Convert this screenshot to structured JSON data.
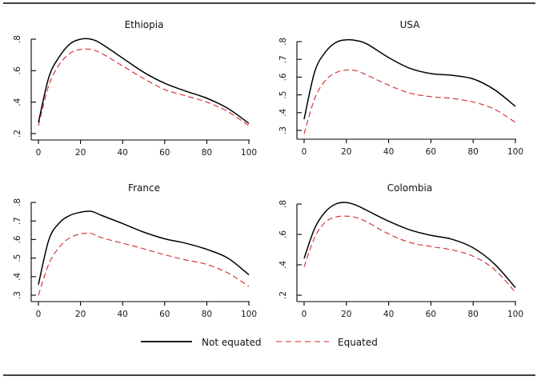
{
  "chart_data": [
    {
      "type": "line",
      "title": "Ethiopia",
      "xlabel": "",
      "ylabel": "",
      "xlim": [
        0,
        100
      ],
      "ylim": [
        0.2,
        0.8
      ],
      "xticks": [
        0,
        20,
        40,
        60,
        80,
        100
      ],
      "xtick_labels": [
        "0",
        "20",
        "40",
        "60",
        "80",
        "100"
      ],
      "yticks": [
        0.2,
        0.4,
        0.6,
        0.8
      ],
      "ytick_labels": [
        ".2",
        ".4",
        ".6",
        ".8"
      ],
      "x": [
        0,
        5,
        10,
        15,
        20,
        25,
        30,
        40,
        50,
        60,
        70,
        80,
        90,
        100
      ],
      "series": [
        {
          "name": "Not equated",
          "style": "solid",
          "color": "#000000",
          "values": [
            0.27,
            0.56,
            0.69,
            0.77,
            0.8,
            0.8,
            0.77,
            0.68,
            0.59,
            0.52,
            0.47,
            0.425,
            0.36,
            0.265
          ]
        },
        {
          "name": "Equated",
          "style": "dashed",
          "color": "#d62728",
          "values": [
            0.25,
            0.51,
            0.64,
            0.71,
            0.735,
            0.735,
            0.71,
            0.63,
            0.55,
            0.48,
            0.44,
            0.4,
            0.34,
            0.25
          ]
        }
      ],
      "grid": false
    },
    {
      "type": "line",
      "title": "USA",
      "xlabel": "",
      "ylabel": "",
      "xlim": [
        0,
        100
      ],
      "ylim": [
        0.3,
        0.8
      ],
      "xticks": [
        0,
        20,
        40,
        60,
        80,
        100
      ],
      "xtick_labels": [
        "0",
        "20",
        "40",
        "60",
        "80",
        "100"
      ],
      "yticks": [
        0.3,
        0.4,
        0.5,
        0.6,
        0.7,
        0.8
      ],
      "ytick_labels": [
        ".3",
        ".4",
        ".5",
        ".6",
        ".7",
        ".8"
      ],
      "x": [
        0,
        5,
        10,
        15,
        20,
        25,
        30,
        40,
        50,
        60,
        70,
        80,
        90,
        100
      ],
      "series": [
        {
          "name": "Not equated",
          "style": "solid",
          "color": "#000000",
          "values": [
            0.363,
            0.63,
            0.74,
            0.795,
            0.81,
            0.805,
            0.785,
            0.71,
            0.65,
            0.62,
            0.61,
            0.59,
            0.53,
            0.435
          ]
        },
        {
          "name": "Equated",
          "style": "dashed",
          "color": "#d62728",
          "values": [
            0.28,
            0.48,
            0.58,
            0.625,
            0.64,
            0.635,
            0.61,
            0.555,
            0.51,
            0.49,
            0.48,
            0.46,
            0.42,
            0.345
          ]
        }
      ],
      "grid": false
    },
    {
      "type": "line",
      "title": "France",
      "xlabel": "",
      "ylabel": "",
      "xlim": [
        0,
        100
      ],
      "ylim": [
        0.3,
        0.8
      ],
      "xticks": [
        0,
        20,
        40,
        60,
        80,
        100
      ],
      "xtick_labels": [
        "0",
        "20",
        "40",
        "60",
        "80",
        "100"
      ],
      "yticks": [
        0.3,
        0.4,
        0.5,
        0.6,
        0.7,
        0.8
      ],
      "ytick_labels": [
        ".3",
        ".4",
        ".5",
        ".6",
        ".7",
        ".8"
      ],
      "x": [
        0,
        5,
        10,
        15,
        20,
        25,
        30,
        40,
        50,
        60,
        70,
        80,
        90,
        100
      ],
      "series": [
        {
          "name": "Not equated",
          "style": "solid",
          "color": "#000000",
          "values": [
            0.357,
            0.6,
            0.69,
            0.73,
            0.747,
            0.752,
            0.73,
            0.686,
            0.64,
            0.604,
            0.58,
            0.547,
            0.5,
            0.41
          ]
        },
        {
          "name": "Equated",
          "style": "dashed",
          "color": "#d62728",
          "values": [
            0.3,
            0.47,
            0.56,
            0.61,
            0.63,
            0.633,
            0.61,
            0.58,
            0.55,
            0.518,
            0.49,
            0.466,
            0.42,
            0.347
          ]
        }
      ],
      "grid": false
    },
    {
      "type": "line",
      "title": "Colombia",
      "xlabel": "",
      "ylabel": "",
      "xlim": [
        0,
        100
      ],
      "ylim": [
        0.2,
        0.8
      ],
      "xticks": [
        0,
        20,
        40,
        60,
        80,
        100
      ],
      "xtick_labels": [
        "0",
        "20",
        "40",
        "60",
        "80",
        "100"
      ],
      "yticks": [
        0.2,
        0.4,
        0.6,
        0.8
      ],
      "ytick_labels": [
        ".2",
        ".4",
        ".6",
        ".8"
      ],
      "x": [
        0,
        5,
        10,
        15,
        20,
        25,
        30,
        40,
        50,
        60,
        70,
        80,
        90,
        100
      ],
      "series": [
        {
          "name": "Not equated",
          "style": "solid",
          "color": "#000000",
          "values": [
            0.442,
            0.64,
            0.748,
            0.8,
            0.81,
            0.79,
            0.756,
            0.687,
            0.63,
            0.594,
            0.568,
            0.512,
            0.407,
            0.25
          ]
        },
        {
          "name": "Equated",
          "style": "dashed",
          "color": "#d62728",
          "values": [
            0.386,
            0.58,
            0.68,
            0.715,
            0.72,
            0.71,
            0.68,
            0.603,
            0.547,
            0.52,
            0.498,
            0.456,
            0.37,
            0.219
          ]
        }
      ],
      "grid": false
    }
  ],
  "legend": {
    "placement": "bottom-center",
    "items": [
      {
        "label": "Not equated",
        "style": "solid",
        "color": "#000000"
      },
      {
        "label": "Equated",
        "style": "dashed",
        "color": "#d62728"
      }
    ]
  }
}
